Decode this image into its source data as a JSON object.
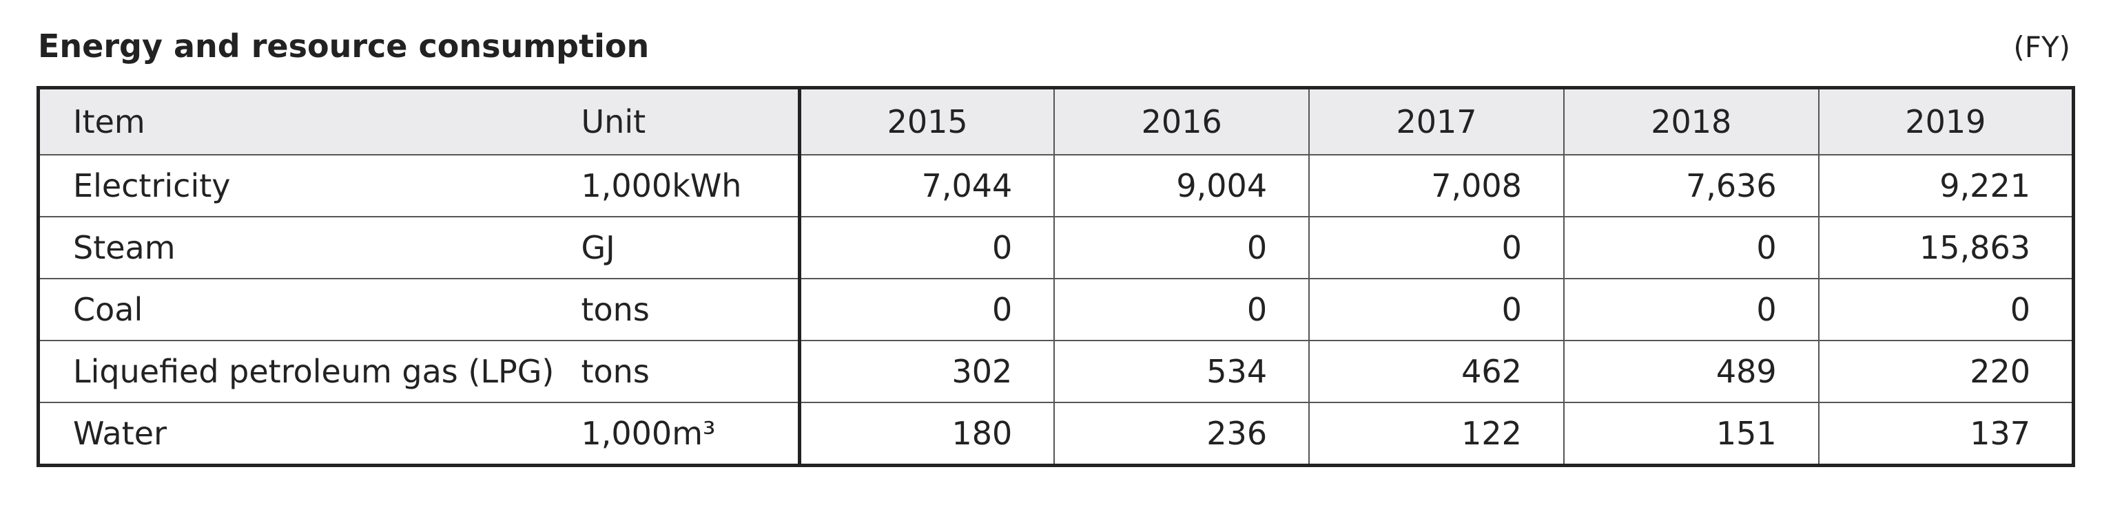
{
  "header": {
    "title": "Energy and resource consumption",
    "note": "(FY)"
  },
  "table": {
    "columns": [
      "Item",
      "Unit",
      "2015",
      "2016",
      "2017",
      "2018",
      "2019"
    ],
    "rows": [
      [
        "Electricity",
        "1,000kWh",
        "7,044",
        "9,004",
        "7,008",
        "7,636",
        "9,221"
      ],
      [
        "Steam",
        "GJ",
        "0",
        "0",
        "0",
        "0",
        "15,863"
      ],
      [
        "Coal",
        "tons",
        "0",
        "0",
        "0",
        "0",
        "0"
      ],
      [
        "Liquefied petroleum gas (LPG)",
        "tons",
        "302",
        "534",
        "462",
        "489",
        "220"
      ],
      [
        "Water",
        "1,000m³",
        "180",
        "236",
        "122",
        "151",
        "137"
      ]
    ]
  }
}
